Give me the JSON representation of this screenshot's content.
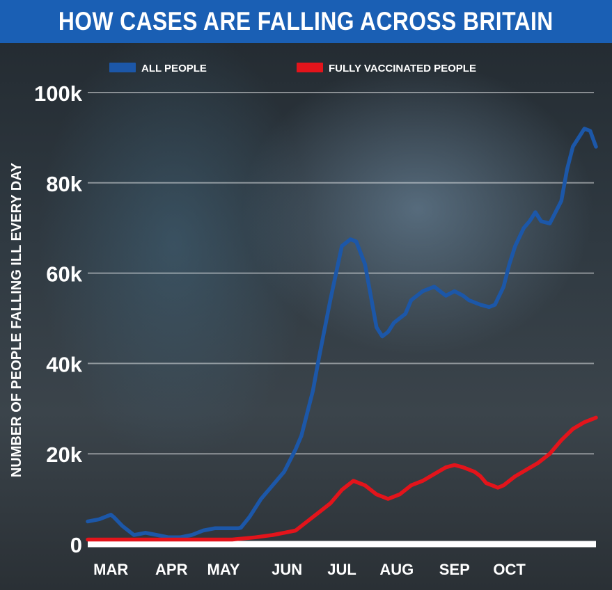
{
  "chart_data": {
    "type": "line",
    "title": "HOW CASES ARE FALLING ACROSS BRITAIN",
    "xlabel": "",
    "ylabel": "NUMBER OF PEOPLE FALLING ILL EVERY DAY",
    "ylim": [
      0,
      100000
    ],
    "yticks": [
      {
        "value": 0,
        "label": "0"
      },
      {
        "value": 20000,
        "label": "20k"
      },
      {
        "value": 40000,
        "label": "40k"
      },
      {
        "value": 60000,
        "label": "60k"
      },
      {
        "value": 80000,
        "label": "80k"
      },
      {
        "value": 100000,
        "label": "100k"
      }
    ],
    "xlim": [
      0,
      8.8
    ],
    "xticks": [
      {
        "value": 0.4,
        "label": "MAR"
      },
      {
        "value": 1.45,
        "label": "APR"
      },
      {
        "value": 2.35,
        "label": "MAY"
      },
      {
        "value": 3.45,
        "label": "JUN"
      },
      {
        "value": 4.4,
        "label": "JUL"
      },
      {
        "value": 5.35,
        "label": "AUG"
      },
      {
        "value": 6.35,
        "label": "SEP"
      },
      {
        "value": 7.3,
        "label": "OCT"
      }
    ],
    "grid": true,
    "legend_position": "top",
    "series": [
      {
        "name": "ALL PEOPLE",
        "color": "#1c57a8",
        "x": [
          0,
          0.2,
          0.3,
          0.4,
          0.45,
          0.6,
          0.8,
          1.0,
          1.2,
          1.4,
          1.6,
          1.8,
          2.0,
          2.2,
          2.4,
          2.6,
          2.65,
          2.8,
          3.0,
          3.2,
          3.4,
          3.6,
          3.7,
          3.9,
          4.0,
          4.2,
          4.4,
          4.55,
          4.65,
          4.8,
          4.9,
          5.0,
          5.1,
          5.2,
          5.3,
          5.5,
          5.6,
          5.8,
          6.0,
          6.2,
          6.35,
          6.5,
          6.6,
          6.8,
          6.95,
          7.05,
          7.2,
          7.3,
          7.4,
          7.55,
          7.65,
          7.75,
          7.85,
          8.0,
          8.2,
          8.3,
          8.4,
          8.6,
          8.7,
          8.8
        ],
        "y": [
          5000,
          5500,
          6000,
          6500,
          6000,
          4000,
          2000,
          2500,
          2000,
          1500,
          1500,
          2000,
          3000,
          3500,
          3500,
          3500,
          3600,
          6000,
          10000,
          13000,
          16000,
          21000,
          24000,
          34000,
          41000,
          54000,
          66000,
          67500,
          67000,
          62000,
          55000,
          48000,
          46000,
          47000,
          49000,
          51000,
          54000,
          56000,
          57000,
          55000,
          56000,
          55000,
          54000,
          53000,
          52500,
          53000,
          57000,
          62000,
          66000,
          70000,
          71500,
          73500,
          71500,
          71000,
          76000,
          83000,
          88000,
          92000,
          91500,
          88000
        ]
      },
      {
        "name": "FULLY VACCINATED PEOPLE",
        "color": "#e3141b",
        "x": [
          0,
          0.5,
          1.0,
          1.5,
          2.0,
          2.5,
          2.9,
          3.2,
          3.4,
          3.6,
          3.8,
          4.0,
          4.2,
          4.4,
          4.5,
          4.6,
          4.8,
          5.0,
          5.2,
          5.4,
          5.6,
          5.8,
          6.0,
          6.2,
          6.35,
          6.5,
          6.7,
          6.8,
          6.9,
          7.0,
          7.1,
          7.2,
          7.4,
          7.6,
          7.8,
          8.0,
          8.2,
          8.4,
          8.6,
          8.8
        ],
        "y": [
          1000,
          1000,
          1000,
          1000,
          1000,
          1000,
          1500,
          2000,
          2500,
          3000,
          5000,
          7000,
          9000,
          12000,
          13000,
          14000,
          13000,
          11000,
          10000,
          11000,
          13000,
          14000,
          15500,
          17000,
          17500,
          17000,
          16000,
          15000,
          13500,
          13000,
          12500,
          13000,
          15000,
          16500,
          18000,
          20000,
          23000,
          25500,
          27000,
          28000
        ]
      }
    ]
  }
}
